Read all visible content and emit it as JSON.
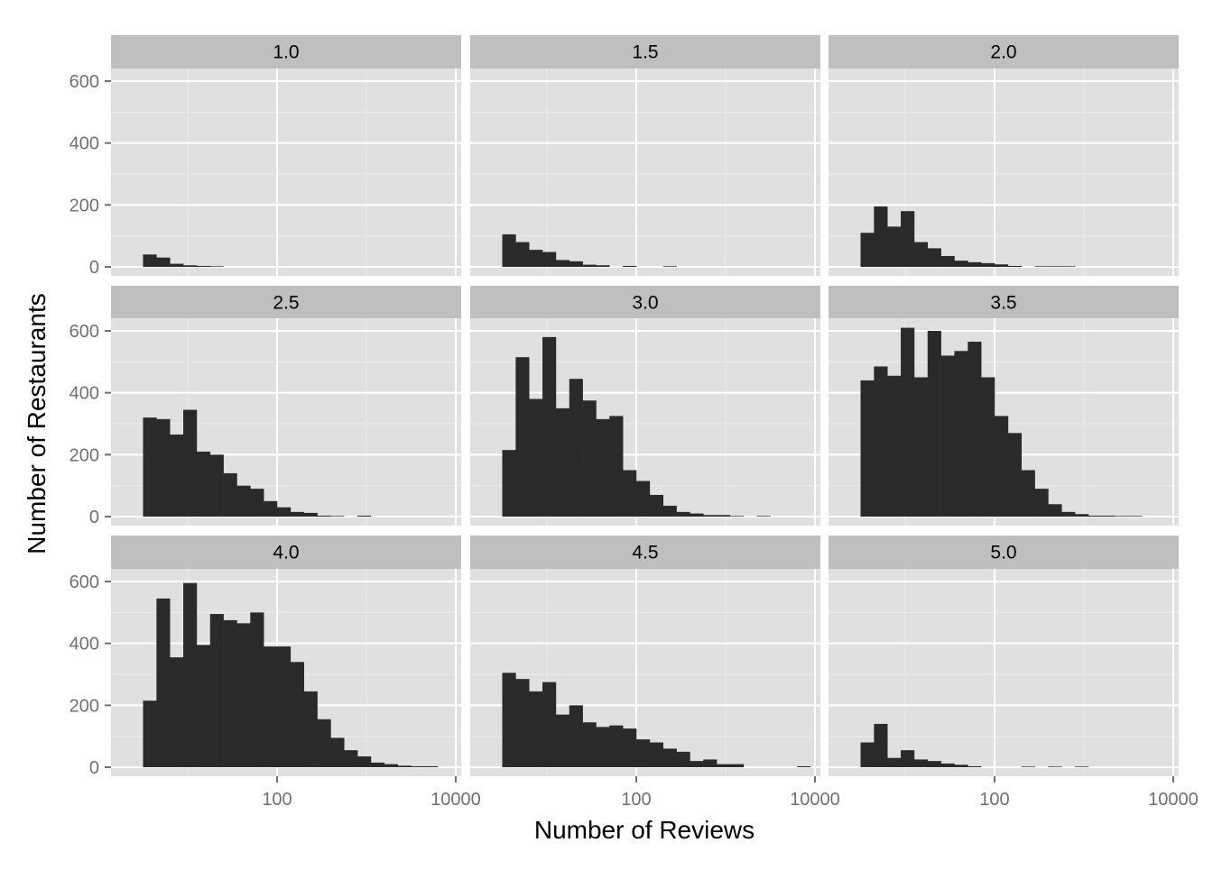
{
  "chart_data": {
    "type": "bar",
    "facet_variable": "stars",
    "xlabel": "Number of Reviews",
    "ylabel": "Number of Restaurants",
    "x_scale": "log10",
    "x_ticks": [
      "100",
      "10000"
    ],
    "y_ticks": [
      "0",
      "200",
      "400",
      "600"
    ],
    "ylim": [
      0,
      640
    ],
    "grid": true,
    "bin_x_start_log10": 0.5,
    "bin_width_log10": 0.15,
    "panels": [
      {
        "label": "1.0",
        "counts": [
          40,
          30,
          10,
          5,
          3,
          2,
          0,
          0,
          0,
          0,
          0,
          0,
          0,
          0,
          0,
          0,
          0,
          0,
          0,
          0,
          0,
          0,
          0,
          0,
          0,
          0,
          0,
          0,
          0,
          0,
          0,
          0,
          0
        ]
      },
      {
        "label": "1.5",
        "counts": [
          105,
          80,
          55,
          48,
          22,
          18,
          7,
          5,
          0,
          3,
          0,
          0,
          2,
          0,
          0,
          0,
          0,
          0,
          0,
          0,
          0,
          0,
          0,
          0,
          0,
          0,
          0,
          0,
          0,
          0,
          0,
          0,
          0
        ]
      },
      {
        "label": "2.0",
        "counts": [
          110,
          195,
          130,
          180,
          80,
          60,
          35,
          20,
          15,
          12,
          8,
          3,
          0,
          2,
          2,
          2,
          0,
          0,
          0,
          0,
          0,
          0,
          0,
          0,
          0,
          0,
          0,
          0,
          0,
          0,
          0,
          0,
          0
        ]
      },
      {
        "label": "2.5",
        "counts": [
          320,
          315,
          265,
          345,
          210,
          200,
          140,
          100,
          90,
          50,
          30,
          15,
          12,
          3,
          2,
          0,
          3,
          0,
          0,
          0,
          0,
          0,
          0,
          0,
          0,
          0,
          0,
          0,
          0,
          0,
          0,
          0,
          0
        ]
      },
      {
        "label": "3.0",
        "counts": [
          215,
          515,
          380,
          580,
          350,
          445,
          375,
          315,
          325,
          150,
          115,
          70,
          35,
          15,
          10,
          5,
          5,
          2,
          0,
          2,
          0,
          0,
          0,
          0,
          0,
          0,
          0,
          0,
          0,
          0,
          0,
          0,
          0
        ]
      },
      {
        "label": "3.5",
        "counts": [
          440,
          485,
          455,
          610,
          450,
          600,
          520,
          535,
          565,
          450,
          325,
          270,
          150,
          90,
          40,
          15,
          8,
          3,
          3,
          2,
          2,
          0,
          0,
          0,
          0,
          0,
          0,
          0,
          0,
          0,
          0,
          0,
          0
        ]
      },
      {
        "label": "4.0",
        "counts": [
          215,
          545,
          355,
          595,
          395,
          495,
          475,
          465,
          500,
          390,
          390,
          340,
          245,
          155,
          95,
          55,
          35,
          15,
          10,
          5,
          3,
          3,
          0,
          0,
          0,
          0,
          0,
          0,
          0,
          0,
          0,
          0,
          0
        ]
      },
      {
        "label": "4.5",
        "counts": [
          305,
          285,
          245,
          275,
          170,
          200,
          145,
          130,
          135,
          125,
          90,
          80,
          60,
          50,
          20,
          25,
          10,
          10,
          0,
          0,
          0,
          0,
          3,
          0,
          0,
          0,
          0,
          0,
          0,
          0,
          0,
          0,
          0
        ]
      },
      {
        "label": "5.0",
        "counts": [
          80,
          140,
          30,
          55,
          25,
          20,
          12,
          8,
          3,
          0,
          0,
          0,
          2,
          0,
          2,
          0,
          2,
          0,
          0,
          0,
          0,
          0,
          0,
          0,
          0,
          0,
          0,
          0,
          0,
          0,
          0,
          0,
          0
        ]
      }
    ]
  },
  "colors": {
    "panel_background": "#e0e0e0",
    "strip_background": "#bfbfbf",
    "grid_major": "#ffffff",
    "grid_minor": "#ebebeb",
    "bar_fill": "#2a2a2a",
    "tick_label": "#707070",
    "text": "#000000"
  }
}
